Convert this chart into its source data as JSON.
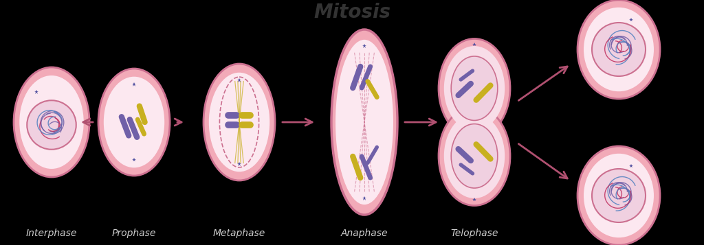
{
  "title": "Mitosis",
  "title_fontsize": 20,
  "title_color": "#333333",
  "background_color": "#000000",
  "fig_bg": "#000000",
  "stages": [
    "Interphase",
    "Prophase",
    "Metaphase",
    "Anaphase",
    "Telophase"
  ],
  "stage_label_color": "#cccccc",
  "stage_label_fontsize": 10,
  "cell_fill": "#f2aab8",
  "cell_edge": "#cc7090",
  "inner_fill": "#fce8f0",
  "nucleus_fill": "#f0d0e0",
  "nucleus_edge": "#cc7090",
  "arrow_color": "#b05070",
  "chromatin_colors": [
    "#7060a8",
    "#c03060",
    "#5080c0"
  ],
  "chrom_purple": "#7060a8",
  "chrom_yellow": "#c8b020",
  "spindle_color": "#c8b020"
}
